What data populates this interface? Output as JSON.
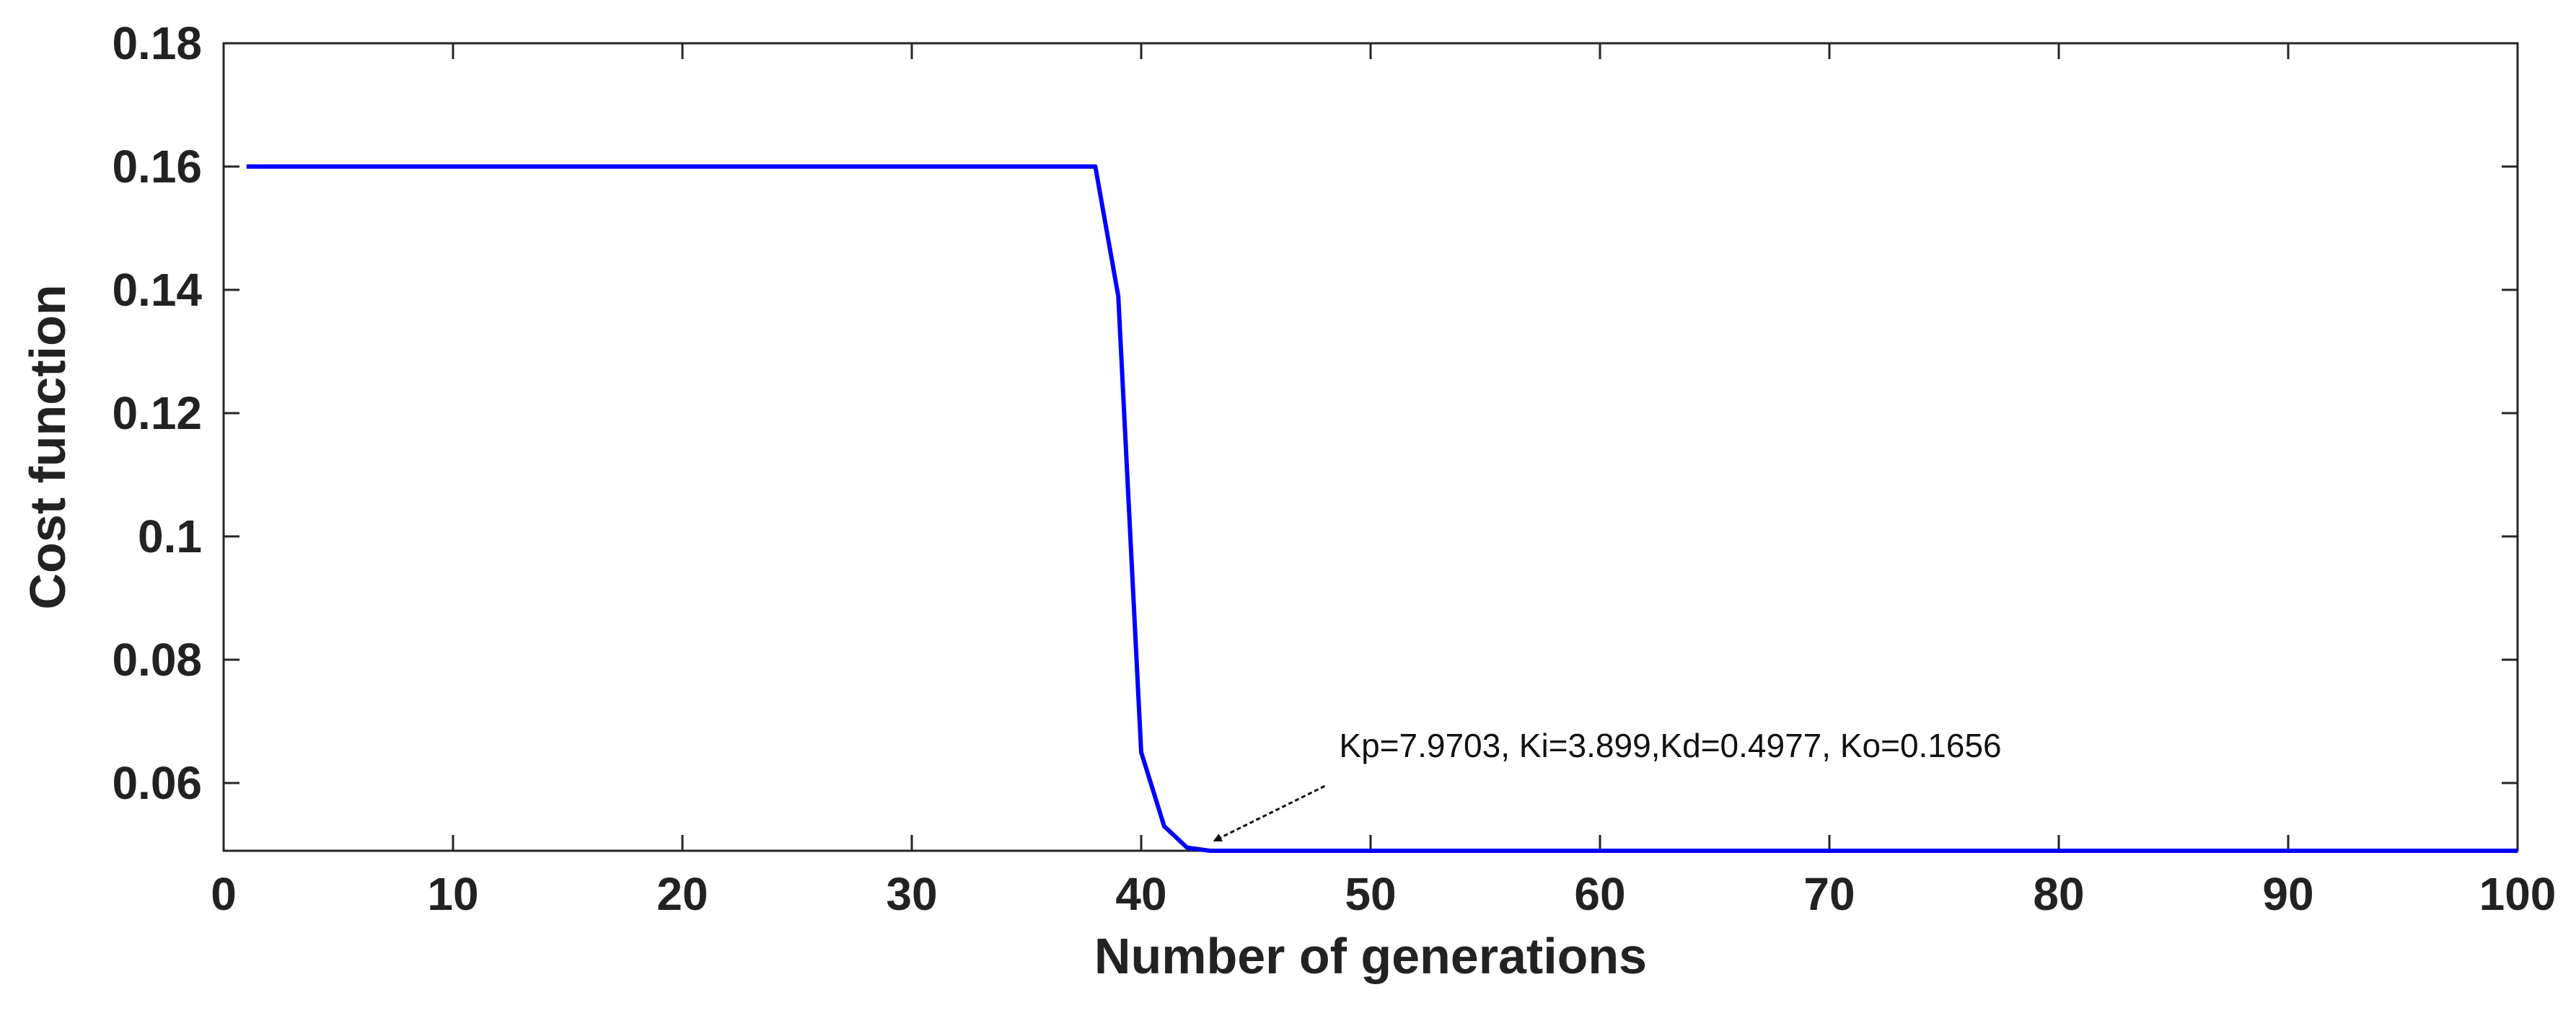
{
  "chart_data": {
    "type": "line",
    "title": "",
    "xlabel": "Number of generations",
    "ylabel": "Cost function",
    "xlim": [
      0,
      100
    ],
    "ylim": [
      0.049,
      0.18
    ],
    "xticks": [
      0,
      10,
      20,
      30,
      40,
      50,
      60,
      70,
      80,
      90,
      100
    ],
    "xtick_labels": [
      "0",
      "10",
      "20",
      "30",
      "40",
      "50",
      "60",
      "70",
      "80",
      "90",
      "100"
    ],
    "yticks": [
      0.06,
      0.08,
      0.1,
      0.12,
      0.14,
      0.16,
      0.18
    ],
    "ytick_labels": [
      "0.06",
      "0.08",
      "0.1",
      "0.12",
      "0.14",
      "0.16",
      "0.18"
    ],
    "grid": false,
    "legend": "none",
    "series": [
      {
        "color": "#0000ff",
        "x": [
          1,
          38,
          39,
          40,
          41,
          42,
          43,
          100
        ],
        "y": [
          0.16,
          0.16,
          0.139,
          0.065,
          0.053,
          0.0495,
          0.049,
          0.049
        ]
      }
    ],
    "annotations": [
      {
        "text": "Kp=7.9703, Ki=3.899,Kd=0.4977, Ko=0.1656",
        "arrow_to": {
          "x": 43,
          "y": 0.049
        },
        "arrow_from": {
          "x": 48,
          "y": 0.0595
        }
      }
    ]
  }
}
